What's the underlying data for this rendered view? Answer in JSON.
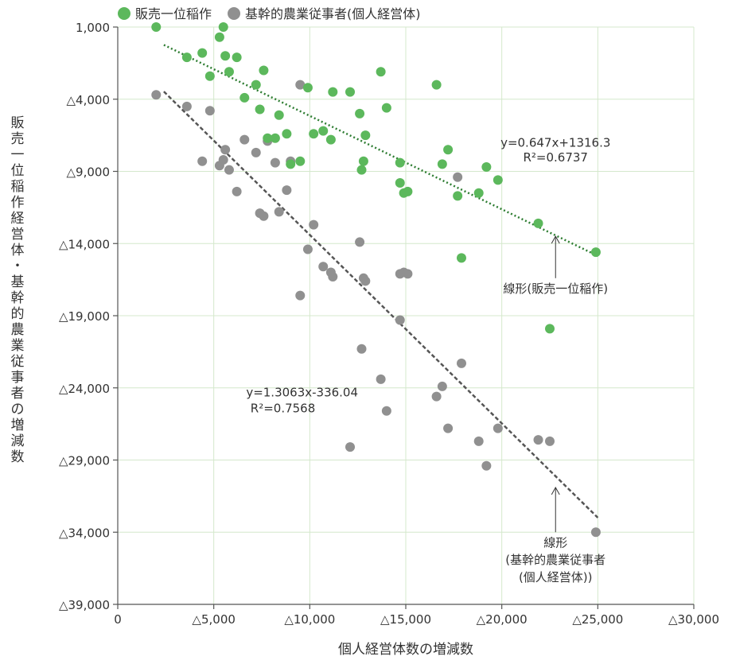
{
  "chart_data": {
    "type": "scatter",
    "xlabel": "個人経営体数の増減数",
    "ylabel": "販売一位稲作経営体・基幹的農業従事者の増減数",
    "xlim": [
      0,
      -30000
    ],
    "ylim": [
      -39000,
      1000
    ],
    "xticks": [
      0,
      -5000,
      -10000,
      -15000,
      -20000,
      -25000,
      -30000
    ],
    "yticks": [
      1000,
      -4000,
      -9000,
      -14000,
      -19000,
      -24000,
      -29000,
      -34000,
      -39000
    ],
    "x_tick_labels": [
      "0",
      "△5,000",
      "△10,000",
      "△15,000",
      "△20,000",
      "△25,000",
      "△30,000"
    ],
    "y_tick_labels": [
      "1,000",
      "△4,000",
      "△9,000",
      "△14,000",
      "△19,000",
      "△24,000",
      "△29,000",
      "△34,000",
      "△39,000"
    ],
    "grid": true,
    "legend_position": "top-left",
    "series": [
      {
        "name": "販売一位稲作",
        "color": "#5cb85c",
        "x": [
          -2000,
          -3600,
          -4400,
          -4800,
          -5300,
          -5500,
          -5600,
          -5800,
          -6200,
          -6600,
          -7200,
          -7400,
          -7600,
          -7800,
          -8200,
          -8400,
          -8800,
          -9000,
          -9500,
          -9900,
          -10200,
          -10700,
          -11100,
          -11200,
          -12100,
          -12600,
          -12700,
          -12800,
          -12900,
          -13700,
          -14000,
          -14700,
          -14700,
          -14900,
          -15100,
          -16600,
          -16900,
          -17200,
          -17700,
          -17900,
          -18800,
          -19200,
          -19800,
          -21900,
          -22500,
          -24900
        ],
        "y": [
          1000,
          -1100,
          -800,
          -2400,
          300,
          1000,
          -1000,
          -2100,
          -1100,
          -3900,
          -3000,
          -4700,
          -2000,
          -6700,
          -6700,
          -5100,
          -6400,
          -8500,
          -8300,
          -3200,
          -6400,
          -6200,
          -6800,
          -3500,
          -3500,
          -5000,
          -8900,
          -8300,
          -6500,
          -2100,
          -4600,
          -8400,
          -9800,
          -10500,
          -10400,
          -3000,
          -8500,
          -7500,
          -10700,
          -15000,
          -10500,
          -8700,
          -9600,
          -12600,
          -19900,
          -14600
        ]
      },
      {
        "name": "基幹的農業従事者(個人経営体)",
        "color": "#909090",
        "x": [
          -2000,
          -3600,
          -4400,
          -4800,
          -5300,
          -5500,
          -5600,
          -5800,
          -6200,
          -6600,
          -7200,
          -7400,
          -7600,
          -7800,
          -8200,
          -8400,
          -8800,
          -9000,
          -9500,
          -9500,
          -9900,
          -10200,
          -10700,
          -11100,
          -11200,
          -12100,
          -12600,
          -12700,
          -12800,
          -12900,
          -13700,
          -14000,
          -14700,
          -14700,
          -14900,
          -15100,
          -16600,
          -16900,
          -17200,
          -17700,
          -17900,
          -18800,
          -19200,
          -19800,
          -21900,
          -22500,
          -24900
        ],
        "y": [
          -3700,
          -4500,
          -8300,
          -4800,
          -8600,
          -8200,
          -7500,
          -8900,
          -10400,
          -6800,
          -7700,
          -11900,
          -12100,
          -6900,
          -8400,
          -11800,
          -10300,
          -8300,
          -17600,
          -3000,
          -14400,
          -12700,
          -15600,
          -16000,
          -16300,
          -28100,
          -13900,
          -21300,
          -16400,
          -16600,
          -23400,
          -25600,
          -16100,
          -19300,
          -16000,
          -16100,
          -24600,
          -23900,
          -26800,
          -9400,
          -22300,
          -27700,
          -29400,
          -26800,
          -27600,
          -27700,
          -34000
        ]
      }
    ],
    "trendlines": [
      {
        "series": "販売一位稲作",
        "slope": 0.647,
        "intercept": 1316.3,
        "x_range": [
          -2400,
          -25000
        ],
        "color": "#2e7d32",
        "style": "dotted"
      },
      {
        "series": "基幹的農業従事者(個人経営体)",
        "slope": 1.3063,
        "intercept": -336.04,
        "x_range": [
          -2400,
          -25000
        ],
        "color": "#555555",
        "style": "dashed"
      }
    ],
    "annotations": [
      {
        "text": "y=0.647x+1316.3",
        "x": -22800,
        "y": -7300
      },
      {
        "text": "R²=0.6737",
        "x": -22800,
        "y": -8300
      },
      {
        "text": "線形(販売一位稲作)",
        "x": -22800,
        "y": -17400
      },
      {
        "text": "y=1.3063x-336.04",
        "x": -9600,
        "y": -24600
      },
      {
        "text": "R²=0.7568",
        "x": -8600,
        "y": -25700
      },
      {
        "text": "線形",
        "x": -22800,
        "y": -35000
      },
      {
        "text": "(基幹的農業従事者",
        "x": -22800,
        "y": -36200
      },
      {
        "text": "(個人経営体))",
        "x": -22800,
        "y": -37400
      }
    ],
    "annotation_arrows": [
      {
        "from": [
          -22800,
          -16400
        ],
        "to": [
          -22800,
          -13500
        ]
      },
      {
        "from": [
          -22800,
          -34000
        ],
        "to": [
          -22800,
          -30900
        ]
      }
    ]
  }
}
